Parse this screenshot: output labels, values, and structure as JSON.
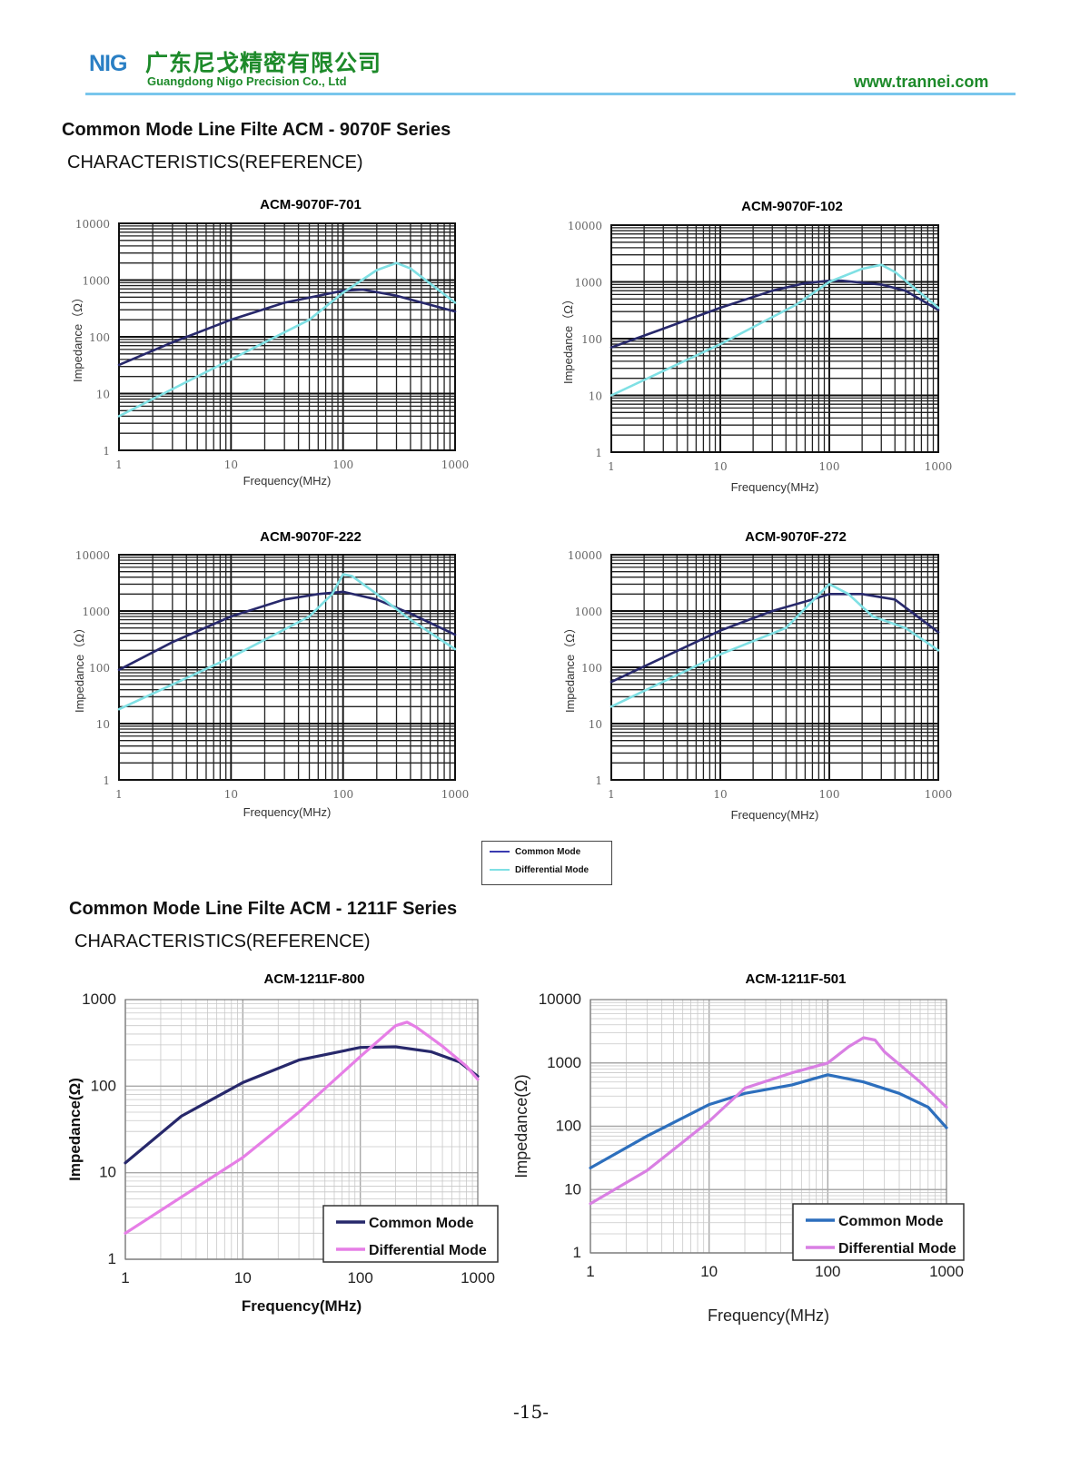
{
  "header": {
    "logo_text": "NIG",
    "company_cn": "广东尼戈精密有限公司",
    "company_en": "Guangdong Nigo Precision Co., Ltd",
    "website": "www.trannei.com",
    "rule_color": "#79c6ec",
    "text_color": "#1d8a2a"
  },
  "section1": {
    "title": "Common Mode Line Filte ACM - 9070F Series",
    "subtitle": "CHARACTERISTICS(REFERENCE)"
  },
  "section2": {
    "title": "Common Mode Line Filte ACM - 1211F Series",
    "subtitle": "CHARACTERISTICS(REFERENCE)"
  },
  "legend": {
    "common": "Common Mode",
    "differential": "Differential Mode"
  },
  "page_number": "-15-",
  "chart_data": [
    {
      "type": "line",
      "title": "ACM-9070F-701",
      "xlabel": "Frequency(MHz)",
      "ylabel": "Impedance（Ω）",
      "xscale": "log",
      "yscale": "log",
      "xlim": [
        1,
        1000
      ],
      "ylim": [
        1,
        10000
      ],
      "xticks": [
        "1",
        "10",
        "100",
        "1000"
      ],
      "yticks": [
        "1",
        "10",
        "100",
        "1000",
        "10000"
      ],
      "series": [
        {
          "name": "Common Mode",
          "color": "#27286b",
          "x": [
            1,
            3,
            10,
            30,
            100,
            150,
            300,
            1000
          ],
          "y": [
            32,
            80,
            200,
            400,
            650,
            680,
            530,
            280
          ]
        },
        {
          "name": "Differential Mode",
          "color": "#7fe0e4",
          "x": [
            1,
            10,
            50,
            100,
            200,
            300,
            400,
            1000
          ],
          "y": [
            4,
            40,
            200,
            600,
            1500,
            2000,
            1600,
            400
          ]
        }
      ]
    },
    {
      "type": "line",
      "title": "ACM-9070F-102",
      "xlabel": "Frequency(MHz)",
      "ylabel": "Impedance（Ω）",
      "xscale": "log",
      "yscale": "log",
      "xlim": [
        1,
        1000
      ],
      "ylim": [
        1,
        10000
      ],
      "xticks": [
        "1",
        "10",
        "100",
        "1000"
      ],
      "yticks": [
        "1",
        "10",
        "100",
        "1000",
        "10000"
      ],
      "series": [
        {
          "name": "Common Mode",
          "color": "#27286b",
          "x": [
            1,
            3,
            10,
            30,
            60,
            100,
            130,
            300,
            500,
            1000
          ],
          "y": [
            70,
            150,
            350,
            700,
            950,
            1050,
            1050,
            900,
            700,
            320
          ]
        },
        {
          "name": "Differential Mode",
          "color": "#7fe0e4",
          "x": [
            1,
            10,
            50,
            100,
            200,
            300,
            400,
            1000
          ],
          "y": [
            10,
            80,
            400,
            1000,
            1700,
            2000,
            1500,
            350
          ]
        }
      ]
    },
    {
      "type": "line",
      "title": "ACM-9070F-222",
      "xlabel": "Frequency(MHz)",
      "ylabel": "Impedance（Ω）",
      "xscale": "log",
      "yscale": "log",
      "xlim": [
        1,
        1000
      ],
      "ylim": [
        1,
        10000
      ],
      "xticks": [
        "1",
        "10",
        "100",
        "1000"
      ],
      "yticks": [
        "1",
        "10",
        "100",
        "1000",
        "10000"
      ],
      "series": [
        {
          "name": "Common Mode",
          "color": "#27286b",
          "x": [
            1,
            3,
            10,
            30,
            60,
            100,
            200,
            400,
            1000
          ],
          "y": [
            90,
            280,
            800,
            1600,
            2000,
            2200,
            1600,
            900,
            380
          ]
        },
        {
          "name": "Differential Mode",
          "color": "#7fe0e4",
          "x": [
            1,
            10,
            50,
            80,
            100,
            120,
            200,
            400,
            1000
          ],
          "y": [
            18,
            150,
            800,
            2000,
            4500,
            4200,
            2000,
            700,
            210
          ]
        }
      ]
    },
    {
      "type": "line",
      "title": "ACM-9070F-272",
      "xlabel": "Frequency(MHz)",
      "ylabel": "Impedance（Ω）",
      "xscale": "log",
      "yscale": "log",
      "xlim": [
        1,
        1000
      ],
      "ylim": [
        1,
        10000
      ],
      "xticks": [
        "1",
        "10",
        "100",
        "1000"
      ],
      "yticks": [
        "1",
        "10",
        "100",
        "1000",
        "10000"
      ],
      "series": [
        {
          "name": "Common Mode",
          "color": "#27286b",
          "x": [
            1,
            3,
            10,
            30,
            70,
            100,
            200,
            400,
            1000
          ],
          "y": [
            55,
            150,
            450,
            1000,
            1600,
            2000,
            2000,
            1600,
            420
          ]
        },
        {
          "name": "Differential Mode",
          "color": "#7fe0e4",
          "x": [
            1,
            10,
            40,
            70,
            100,
            150,
            250,
            500,
            1000
          ],
          "y": [
            20,
            170,
            500,
            1500,
            3000,
            2000,
            800,
            500,
            200
          ]
        }
      ]
    },
    {
      "type": "line",
      "title": "ACM-1211F-800",
      "xlabel": "Frequency(MHz)",
      "ylabel": "Impedance(Ω)",
      "xscale": "log",
      "yscale": "log",
      "xlim": [
        1,
        1000
      ],
      "ylim": [
        1,
        1000
      ],
      "xticks": [
        "1",
        "10",
        "100",
        "1000"
      ],
      "yticks": [
        "1",
        "10",
        "100",
        "1000"
      ],
      "series": [
        {
          "name": "Common Mode",
          "color": "#27286b",
          "x": [
            1,
            3,
            10,
            30,
            100,
            200,
            400,
            700,
            1000
          ],
          "y": [
            13,
            45,
            110,
            200,
            280,
            285,
            250,
            190,
            130
          ]
        },
        {
          "name": "Differential Mode",
          "color": "#e67ee6",
          "x": [
            1,
            10,
            30,
            100,
            200,
            250,
            300,
            500,
            800,
            1000
          ],
          "y": [
            2,
            15,
            50,
            220,
            500,
            550,
            480,
            290,
            170,
            120
          ]
        }
      ]
    },
    {
      "type": "line",
      "title": "ACM-1211F-501",
      "xlabel": "Frequency(MHz)",
      "ylabel": "Impedance(Ω)",
      "xscale": "log",
      "yscale": "log",
      "xlim": [
        1,
        1000
      ],
      "ylim": [
        1,
        10000
      ],
      "xticks": [
        "1",
        "10",
        "100",
        "1000"
      ],
      "yticks": [
        "1",
        "10",
        "100",
        "1000",
        "10000"
      ],
      "series": [
        {
          "name": "Common Mode",
          "color": "#2d6fbd",
          "x": [
            1,
            3,
            10,
            20,
            50,
            100,
            200,
            400,
            700,
            1000
          ],
          "y": [
            22,
            70,
            220,
            330,
            450,
            650,
            500,
            330,
            200,
            95
          ]
        },
        {
          "name": "Differential Mode",
          "color": "#d97fe3",
          "x": [
            1,
            3,
            10,
            20,
            50,
            100,
            150,
            200,
            250,
            300,
            600,
            1000
          ],
          "y": [
            6,
            20,
            120,
            400,
            700,
            1000,
            1800,
            2500,
            2300,
            1500,
            500,
            200
          ]
        }
      ]
    }
  ]
}
